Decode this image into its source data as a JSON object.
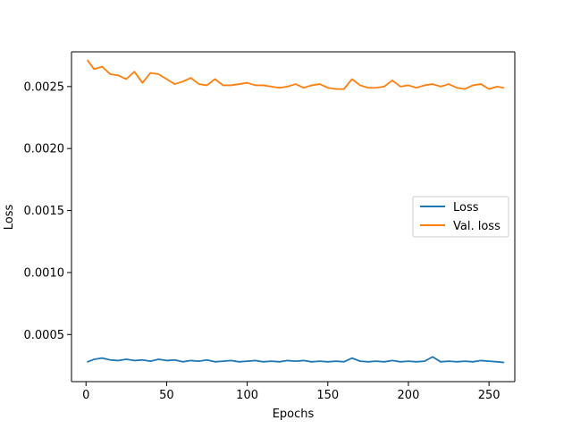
{
  "chart_data": {
    "type": "line",
    "xlabel": "Epochs",
    "ylabel": "Loss",
    "xlim": [
      -9,
      266
    ],
    "ylim": [
      0.00012,
      0.00278
    ],
    "xticks": [
      0,
      50,
      100,
      150,
      200,
      250
    ],
    "xtick_labels": [
      "0",
      "50",
      "100",
      "150",
      "200",
      "250"
    ],
    "yticks": [
      0.0005,
      0.001,
      0.0015,
      0.002,
      0.0025
    ],
    "ytick_labels": [
      "0.0005",
      "0.0010",
      "0.0015",
      "0.0020",
      "0.0025"
    ],
    "grid": false,
    "legend_position": "center-right",
    "x": [
      1,
      5,
      10,
      15,
      20,
      25,
      30,
      35,
      40,
      45,
      50,
      55,
      60,
      65,
      70,
      75,
      80,
      85,
      90,
      95,
      100,
      105,
      110,
      115,
      120,
      125,
      130,
      135,
      140,
      145,
      150,
      155,
      160,
      165,
      170,
      175,
      180,
      185,
      190,
      195,
      200,
      205,
      210,
      215,
      220,
      225,
      230,
      235,
      240,
      245,
      250,
      255,
      259
    ],
    "series": [
      {
        "name": "Loss",
        "color": "#1f77b4",
        "values": [
          0.00028,
          0.0003,
          0.00031,
          0.000295,
          0.00029,
          0.0003,
          0.00029,
          0.000295,
          0.000285,
          0.0003,
          0.00029,
          0.000295,
          0.00028,
          0.00029,
          0.000285,
          0.000295,
          0.00028,
          0.000285,
          0.00029,
          0.00028,
          0.000285,
          0.00029,
          0.00028,
          0.000285,
          0.00028,
          0.00029,
          0.000285,
          0.00029,
          0.00028,
          0.000285,
          0.00028,
          0.000285,
          0.00028,
          0.00031,
          0.000285,
          0.00028,
          0.000285,
          0.00028,
          0.00029,
          0.00028,
          0.000285,
          0.00028,
          0.000285,
          0.00032,
          0.00028,
          0.000285,
          0.00028,
          0.000285,
          0.00028,
          0.00029,
          0.000285,
          0.00028,
          0.000275
        ]
      },
      {
        "name": "Val. loss",
        "color": "#ff7f0e",
        "values": [
          0.00271,
          0.00264,
          0.00266,
          0.0026,
          0.00259,
          0.00256,
          0.00262,
          0.00253,
          0.00261,
          0.0026,
          0.00256,
          0.00252,
          0.00254,
          0.00257,
          0.00252,
          0.00251,
          0.00256,
          0.00251,
          0.00251,
          0.00252,
          0.00253,
          0.00251,
          0.00251,
          0.0025,
          0.00249,
          0.0025,
          0.00252,
          0.00249,
          0.00251,
          0.00252,
          0.00249,
          0.00248,
          0.00248,
          0.00256,
          0.00251,
          0.00249,
          0.00249,
          0.0025,
          0.00255,
          0.0025,
          0.00251,
          0.00249,
          0.00251,
          0.00252,
          0.0025,
          0.00252,
          0.00249,
          0.00248,
          0.00251,
          0.00252,
          0.00248,
          0.0025,
          0.00249
        ]
      }
    ]
  }
}
